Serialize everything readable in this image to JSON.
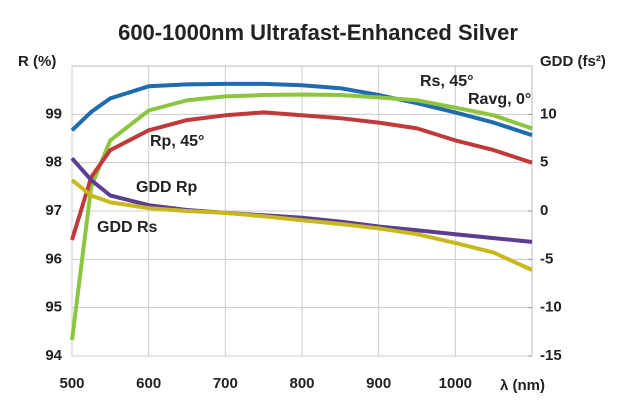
{
  "chart_data": {
    "type": "line",
    "title": "600-1000nm Ultrafast-Enhanced Silver",
    "y_label": "R (%)",
    "y2_label": "GDD (fs²)",
    "x_label": "λ (nm)",
    "x": [
      500,
      525,
      550,
      600,
      650,
      700,
      750,
      800,
      850,
      900,
      950,
      1000,
      1050,
      1100
    ],
    "series": [
      {
        "name": "Rs, 45°",
        "color": "#1f6bb0",
        "values": [
          98.67,
          99.05,
          99.33,
          99.58,
          99.62,
          99.63,
          99.63,
          99.6,
          99.54,
          99.4,
          99.23,
          99.04,
          98.83,
          98.57
        ]
      },
      {
        "name": "Ravg, 0°",
        "color": "#8cc63f",
        "values": [
          94.33,
          97.5,
          98.46,
          99.08,
          99.29,
          99.37,
          99.4,
          99.41,
          99.4,
          99.35,
          99.29,
          99.14,
          98.98,
          98.71
        ]
      },
      {
        "name": "Rp, 45°",
        "color": "#c0393b",
        "values": [
          96.4,
          97.7,
          98.26,
          98.67,
          98.88,
          98.98,
          99.04,
          98.98,
          98.92,
          98.83,
          98.71,
          98.46,
          98.26,
          98.0
        ]
      },
      {
        "name": "GDD Rp",
        "color": "#5b3e8f",
        "axis": "y2",
        "values": [
          5.45,
          3.2,
          1.6,
          0.6,
          0.1,
          -0.2,
          -0.45,
          -0.7,
          -1.1,
          -1.6,
          -2.0,
          -2.4,
          -2.8,
          -3.2
        ]
      },
      {
        "name": "GDD Rs",
        "color": "#c8b81e",
        "axis": "y2",
        "values": [
          3.2,
          1.6,
          0.9,
          0.3,
          0.0,
          -0.2,
          -0.55,
          -0.95,
          -1.35,
          -1.8,
          -2.4,
          -3.3,
          -4.3,
          -6.1
        ]
      }
    ],
    "xlim": [
      500,
      1100
    ],
    "xticks": [
      500,
      600,
      700,
      800,
      900,
      1000
    ],
    "ylim": [
      94,
      100
    ],
    "yticks": [
      94,
      95,
      96,
      97,
      98,
      99
    ],
    "y2lim": [
      -15,
      15
    ],
    "y2ticks": [
      -15,
      -10,
      -5,
      0,
      5,
      10
    ],
    "grid": true
  }
}
